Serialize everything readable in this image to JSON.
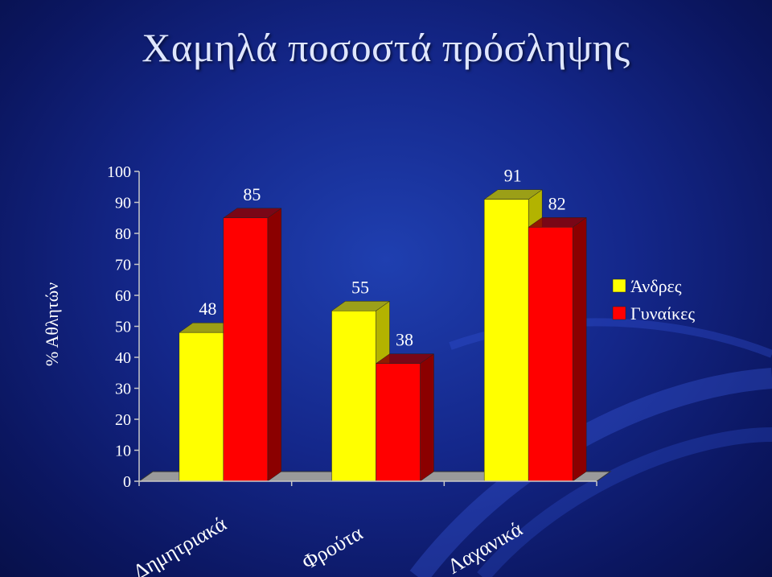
{
  "slide": {
    "title": "Χαμηλά ποσοστά πρόσληψης"
  },
  "chart_data": {
    "type": "bar",
    "categories": [
      "Δημητριακά",
      "Φρούτα",
      "Λαχανικά"
    ],
    "series": [
      {
        "name": "Άνδρες",
        "values": [
          48,
          55,
          91
        ],
        "color": "#ffff00",
        "side_color": "#b3b300"
      },
      {
        "name": "Γυναίκες",
        "values": [
          85,
          38,
          82
        ],
        "color": "#ff0000",
        "side_color": "#8b0000"
      }
    ],
    "ylabel": "% Αθλητών",
    "xlabel": "",
    "ylim": [
      0,
      100
    ],
    "yticks": [
      0,
      10,
      20,
      30,
      40,
      50,
      60,
      70,
      80,
      90,
      100
    ],
    "data_labels": true,
    "legend": "right",
    "three_d": true,
    "grid": false
  }
}
